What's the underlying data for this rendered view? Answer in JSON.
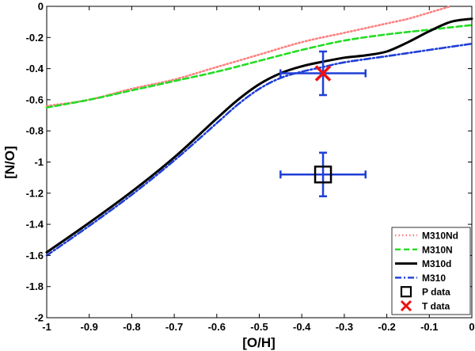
{
  "chart_data": {
    "type": "line",
    "xlabel": "[O/H]",
    "ylabel": "[N/O]",
    "xlim": [
      -1,
      0
    ],
    "ylim": [
      -2,
      0
    ],
    "xticks": [
      -1,
      -0.9,
      -0.8,
      -0.7,
      -0.6,
      -0.5,
      -0.4,
      -0.3,
      -0.2,
      -0.1,
      0
    ],
    "yticks": [
      0,
      -0.2,
      -0.4,
      -0.6,
      -0.8,
      -1,
      -1.2,
      -1.4,
      -1.6,
      -1.8,
      -2
    ],
    "xtick_labels": [
      "-1",
      "-0.9",
      "-0.8",
      "-0.7",
      "-0.6",
      "-0.5",
      "-0.4",
      "-0.3",
      "-0.2",
      "-0.1",
      "0"
    ],
    "ytick_labels": [
      "0",
      "-0.2",
      "-0.4",
      "-0.6",
      "-0.8",
      "-1",
      "-1.2",
      "-1.4",
      "-1.6",
      "-1.8",
      "-2"
    ],
    "grid": false,
    "legend_position": "bottom-right",
    "series": [
      {
        "name": "M310Nd",
        "color": "#ff8080",
        "style": "dotted",
        "x": [
          -1,
          -0.9,
          -0.8,
          -0.7,
          -0.6,
          -0.5,
          -0.4,
          -0.3,
          -0.2,
          -0.15,
          -0.1,
          -0.05
        ],
        "y": [
          -0.64,
          -0.6,
          -0.53,
          -0.47,
          -0.39,
          -0.31,
          -0.23,
          -0.17,
          -0.11,
          -0.08,
          -0.04,
          0.0
        ]
      },
      {
        "name": "M310N",
        "color": "#22dd22",
        "style": "dashed",
        "x": [
          -1,
          -0.9,
          -0.8,
          -0.7,
          -0.6,
          -0.5,
          -0.4,
          -0.3,
          -0.2,
          -0.1,
          0
        ],
        "y": [
          -0.65,
          -0.6,
          -0.54,
          -0.48,
          -0.42,
          -0.35,
          -0.28,
          -0.22,
          -0.18,
          -0.15,
          -0.12
        ]
      },
      {
        "name": "M310d",
        "color": "#000000",
        "style": "solid",
        "x": [
          -1,
          -0.9,
          -0.8,
          -0.7,
          -0.6,
          -0.55,
          -0.5,
          -0.45,
          -0.4,
          -0.35,
          -0.3,
          -0.25,
          -0.2,
          -0.15,
          -0.1,
          -0.05,
          0
        ],
        "y": [
          -1.58,
          -1.39,
          -1.19,
          -0.97,
          -0.72,
          -0.6,
          -0.5,
          -0.43,
          -0.385,
          -0.355,
          -0.33,
          -0.315,
          -0.29,
          -0.23,
          -0.16,
          -0.1,
          -0.08
        ]
      },
      {
        "name": "M310",
        "color": "#1f3fd6",
        "style": "dashdot",
        "x": [
          -1,
          -0.9,
          -0.8,
          -0.7,
          -0.6,
          -0.55,
          -0.5,
          -0.45,
          -0.4,
          -0.35,
          -0.3,
          -0.2,
          -0.1,
          0
        ],
        "y": [
          -1.6,
          -1.41,
          -1.21,
          -0.99,
          -0.75,
          -0.63,
          -0.53,
          -0.46,
          -0.42,
          -0.39,
          -0.36,
          -0.32,
          -0.28,
          -0.24
        ]
      }
    ],
    "points": [
      {
        "name": "P data",
        "marker": "square",
        "color": "#000000",
        "x": -0.35,
        "y": -1.08,
        "xerr": 0.1,
        "yerr": 0.14,
        "errcolor": "#1f3fd6"
      },
      {
        "name": "T data",
        "marker": "x",
        "color": "#ee1111",
        "x": -0.35,
        "y": -0.43,
        "xerr": 0.1,
        "yerr": 0.14,
        "errcolor": "#1f3fd6"
      }
    ]
  }
}
